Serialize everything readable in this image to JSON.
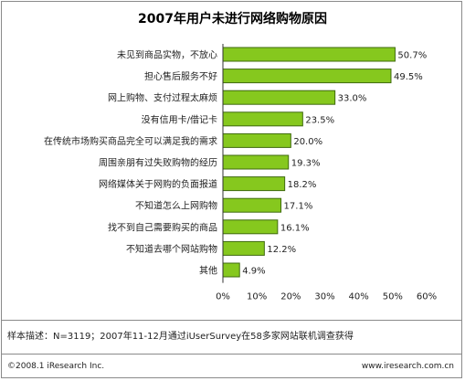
{
  "chart_data": {
    "type": "bar",
    "orientation": "horizontal",
    "title": "2007年用户未进行网络购物原因",
    "categories": [
      "未见到商品实物，不放心",
      "担心售后服务不好",
      "网上购物、支付过程太麻烦",
      "没有信用卡/借记卡",
      "在传统市场购买商品完全可以满足我的需求",
      "周围亲朋有过失败购物的经历",
      "网络媒体关于网购的负面报道",
      "不知道怎么上网购物",
      "找不到自己需要购买的商品",
      "不知道去哪个网站购物",
      "其他"
    ],
    "values": [
      50.7,
      49.5,
      33.0,
      23.5,
      20.0,
      19.3,
      18.2,
      17.1,
      16.1,
      12.2,
      4.9
    ],
    "value_labels": [
      "50.7%",
      "49.5%",
      "33.0%",
      "23.5%",
      "20.0%",
      "19.3%",
      "18.2%",
      "17.1%",
      "16.1%",
      "12.2%",
      "4.9%"
    ],
    "xlim": [
      0,
      60
    ],
    "xticks": [
      0,
      10,
      20,
      30,
      40,
      50,
      60
    ],
    "xtick_labels": [
      "0%",
      "10%",
      "20%",
      "30%",
      "40%",
      "50%",
      "60%"
    ],
    "grid": false,
    "bar_color": "#86c81e",
    "bar_border_color": "#3f6a0e"
  },
  "note": "样本描述：N=3119；2007年11-12月通过iUserSurvey在58多家网站联机调查获得",
  "footer": {
    "copyright": "©2008.1 iResearch Inc.",
    "website": "www.iresearch.com.cn"
  }
}
